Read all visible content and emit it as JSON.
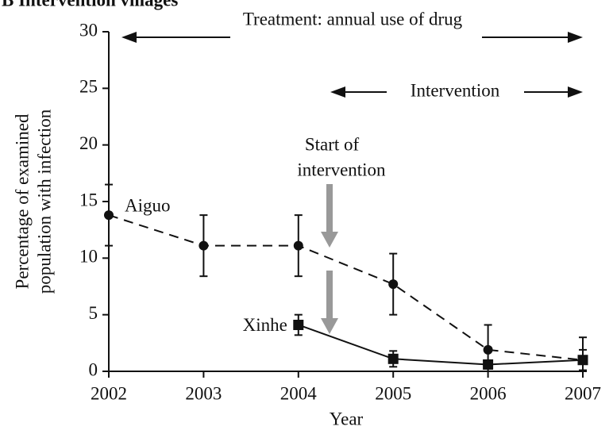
{
  "chart_data": {
    "type": "line",
    "title": "B  Intervention villages",
    "xlabel": "Year",
    "ylabel": [
      "Percentage of examined",
      "population with infection"
    ],
    "x": [
      2002,
      2003,
      2004,
      2005,
      2006,
      2007
    ],
    "xlim": [
      2002,
      2007
    ],
    "xticks": [
      2002,
      2003,
      2004,
      2005,
      2006,
      2007
    ],
    "ylim": [
      0,
      30
    ],
    "yticks": [
      0,
      5,
      10,
      15,
      20,
      25,
      30
    ],
    "series": [
      {
        "name": "Aiguo",
        "color": "#111111",
        "dash": true,
        "marker": "circle",
        "values": [
          13.8,
          11.1,
          11.1,
          7.7,
          1.9,
          1.0
        ],
        "errors": [
          2.7,
          2.7,
          2.7,
          2.7,
          2.2,
          2.0
        ]
      },
      {
        "name": "Xinhe",
        "color": "#111111",
        "dash": false,
        "marker": "square",
        "values": [
          null,
          null,
          4.1,
          1.1,
          0.6,
          1.0
        ],
        "errors": [
          null,
          null,
          0.9,
          0.7,
          0.3,
          0.9
        ]
      }
    ],
    "annotations": [
      "Treatment:  annual use of drug",
      "Intervention",
      "Start of",
      "intervention"
    ]
  }
}
